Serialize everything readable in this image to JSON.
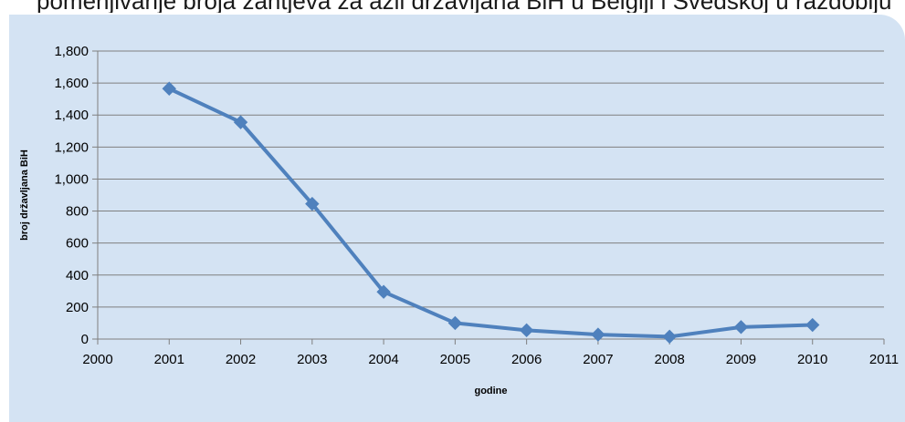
{
  "header": {
    "partial_title": "pomenjivanje broja zahtjeva za azil državljana BiH u Belgiji i Švedskoj u razdoblju"
  },
  "chart_data": {
    "type": "line",
    "title": "",
    "xlabel": "godine",
    "ylabel": "broj državljana BiH",
    "x": [
      2001,
      2002,
      2003,
      2004,
      2005,
      2006,
      2007,
      2008,
      2009,
      2010
    ],
    "series": [
      {
        "values": [
          1565,
          1355,
          845,
          295,
          100,
          55,
          28,
          15,
          75,
          88
        ],
        "color": "#4f81bd",
        "marker": "diamond"
      }
    ],
    "xlim": [
      2000,
      2011
    ],
    "ylim": [
      0,
      1800
    ],
    "x_ticks": [
      "2000",
      "2001",
      "2002",
      "2003",
      "2004",
      "2005",
      "2006",
      "2007",
      "2008",
      "2009",
      "2010",
      "2011"
    ],
    "y_ticks": [
      "0",
      "200",
      "400",
      "600",
      "800",
      "1,000",
      "1,200",
      "1,400",
      "1,600",
      "1,800"
    ],
    "grid": "horizontal",
    "legend": "none",
    "panel_color": "#d4e3f3",
    "gridline_color": "#7f7f7f"
  }
}
